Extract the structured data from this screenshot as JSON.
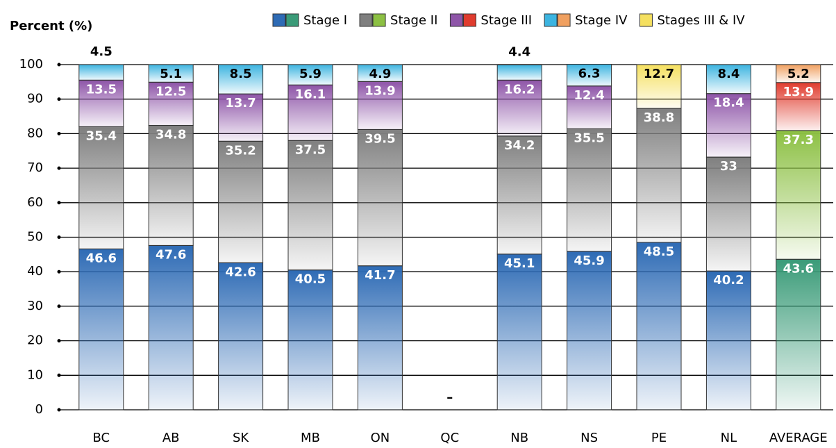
{
  "chart_data": {
    "type": "stacked_bar",
    "y_axis_label": "Percent (%)",
    "categories": [
      "BC",
      "AB",
      "SK",
      "MB",
      "ON",
      "QC",
      "NB",
      "NS",
      "PE",
      "NL",
      "AVERAGE"
    ],
    "series": [
      {
        "name": "Stage I",
        "label_color": "#ffffff",
        "colors": [
          "#2e6bb5",
          "#2e6bb5",
          "#2e6bb5",
          "#2e6bb5",
          "#2e6bb5",
          "#2e6bb5",
          "#2e6bb5",
          "#2e6bb5",
          "#2e6bb5",
          "#2e6bb5",
          "#3a9b78"
        ],
        "values": [
          46.6,
          47.6,
          42.6,
          40.5,
          41.7,
          null,
          45.1,
          45.9,
          48.5,
          40.2,
          43.6
        ]
      },
      {
        "name": "Stage II",
        "label_color": "#ffffff",
        "colors": [
          "#7f7f7f",
          "#7f7f7f",
          "#7f7f7f",
          "#7f7f7f",
          "#7f7f7f",
          "#7f7f7f",
          "#7f7f7f",
          "#7f7f7f",
          "#7f7f7f",
          "#7f7f7f",
          "#8cc043"
        ],
        "values": [
          35.4,
          34.8,
          35.2,
          37.5,
          39.5,
          null,
          34.2,
          35.5,
          38.8,
          33,
          37.3
        ]
      },
      {
        "name": "Stage III",
        "label_color": "#ffffff",
        "colors": [
          "#8e55a8",
          "#8e55a8",
          "#8e55a8",
          "#8e55a8",
          "#8e55a8",
          "#8e55a8",
          "#8e55a8",
          "#8e55a8",
          "#8e55a8",
          "#8e55a8",
          "#e03c2e"
        ],
        "values": [
          13.5,
          12.5,
          13.7,
          16.1,
          13.9,
          null,
          16.2,
          12.4,
          null,
          18.4,
          13.9
        ]
      },
      {
        "name": "Stage IV",
        "label_color": "#000000",
        "colors": [
          "#3cb4e0",
          "#3cb4e0",
          "#3cb4e0",
          "#3cb4e0",
          "#3cb4e0",
          "#3cb4e0",
          "#3cb4e0",
          "#3cb4e0",
          "#3cb4e0",
          "#3cb4e0",
          "#f0a060"
        ],
        "values": [
          4.5,
          5.1,
          8.5,
          5.9,
          4.9,
          null,
          4.4,
          6.3,
          null,
          8.4,
          5.2
        ]
      },
      {
        "name": "Stages III & IV",
        "label_color": "#000000",
        "colors": [
          "#f5e060",
          "#f5e060",
          "#f5e060",
          "#f5e060",
          "#f5e060",
          "#f5e060",
          "#f5e060",
          "#f5e060",
          "#f5e060",
          "#f5e060",
          "#f5e060"
        ],
        "values": [
          null,
          null,
          null,
          null,
          null,
          null,
          null,
          null,
          12.7,
          null,
          null
        ]
      }
    ],
    "missing_label": "–",
    "ylim": [
      0,
      100
    ],
    "yticks": [
      0,
      10,
      20,
      30,
      40,
      50,
      60,
      70,
      80,
      90,
      100
    ],
    "grid": true
  }
}
